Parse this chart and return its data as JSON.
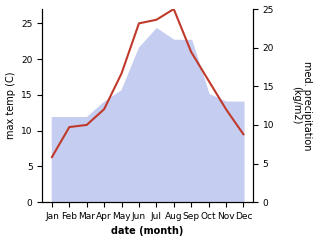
{
  "months": [
    "Jan",
    "Feb",
    "Mar",
    "Apr",
    "May",
    "Jun",
    "Jul",
    "Aug",
    "Sep",
    "Oct",
    "Nov",
    "Dec"
  ],
  "month_positions": [
    0,
    1,
    2,
    3,
    4,
    5,
    6,
    7,
    8,
    9,
    10,
    11
  ],
  "temp_max": [
    6.3,
    10.5,
    10.8,
    13.0,
    18.0,
    25.0,
    25.5,
    27.0,
    21.0,
    17.0,
    13.0,
    9.5
  ],
  "precipitation": [
    11.0,
    11.0,
    11.0,
    13.0,
    14.5,
    20.0,
    22.5,
    21.0,
    21.0,
    14.0,
    13.0,
    13.0
  ],
  "temp_color": "#c0392b",
  "precip_fill_color": "#c5cef0",
  "temp_ylim": [
    0,
    27
  ],
  "precip_ylim": [
    0,
    25
  ],
  "temp_yticks": [
    0,
    5,
    10,
    15,
    20,
    25
  ],
  "precip_yticks": [
    0,
    5,
    10,
    15,
    20,
    25
  ],
  "xlabel": "date (month)",
  "ylabel_left": "max temp (C)",
  "ylabel_right": "med. precipitation\n(kg/m2)",
  "label_fontsize": 7,
  "tick_fontsize": 6.5
}
